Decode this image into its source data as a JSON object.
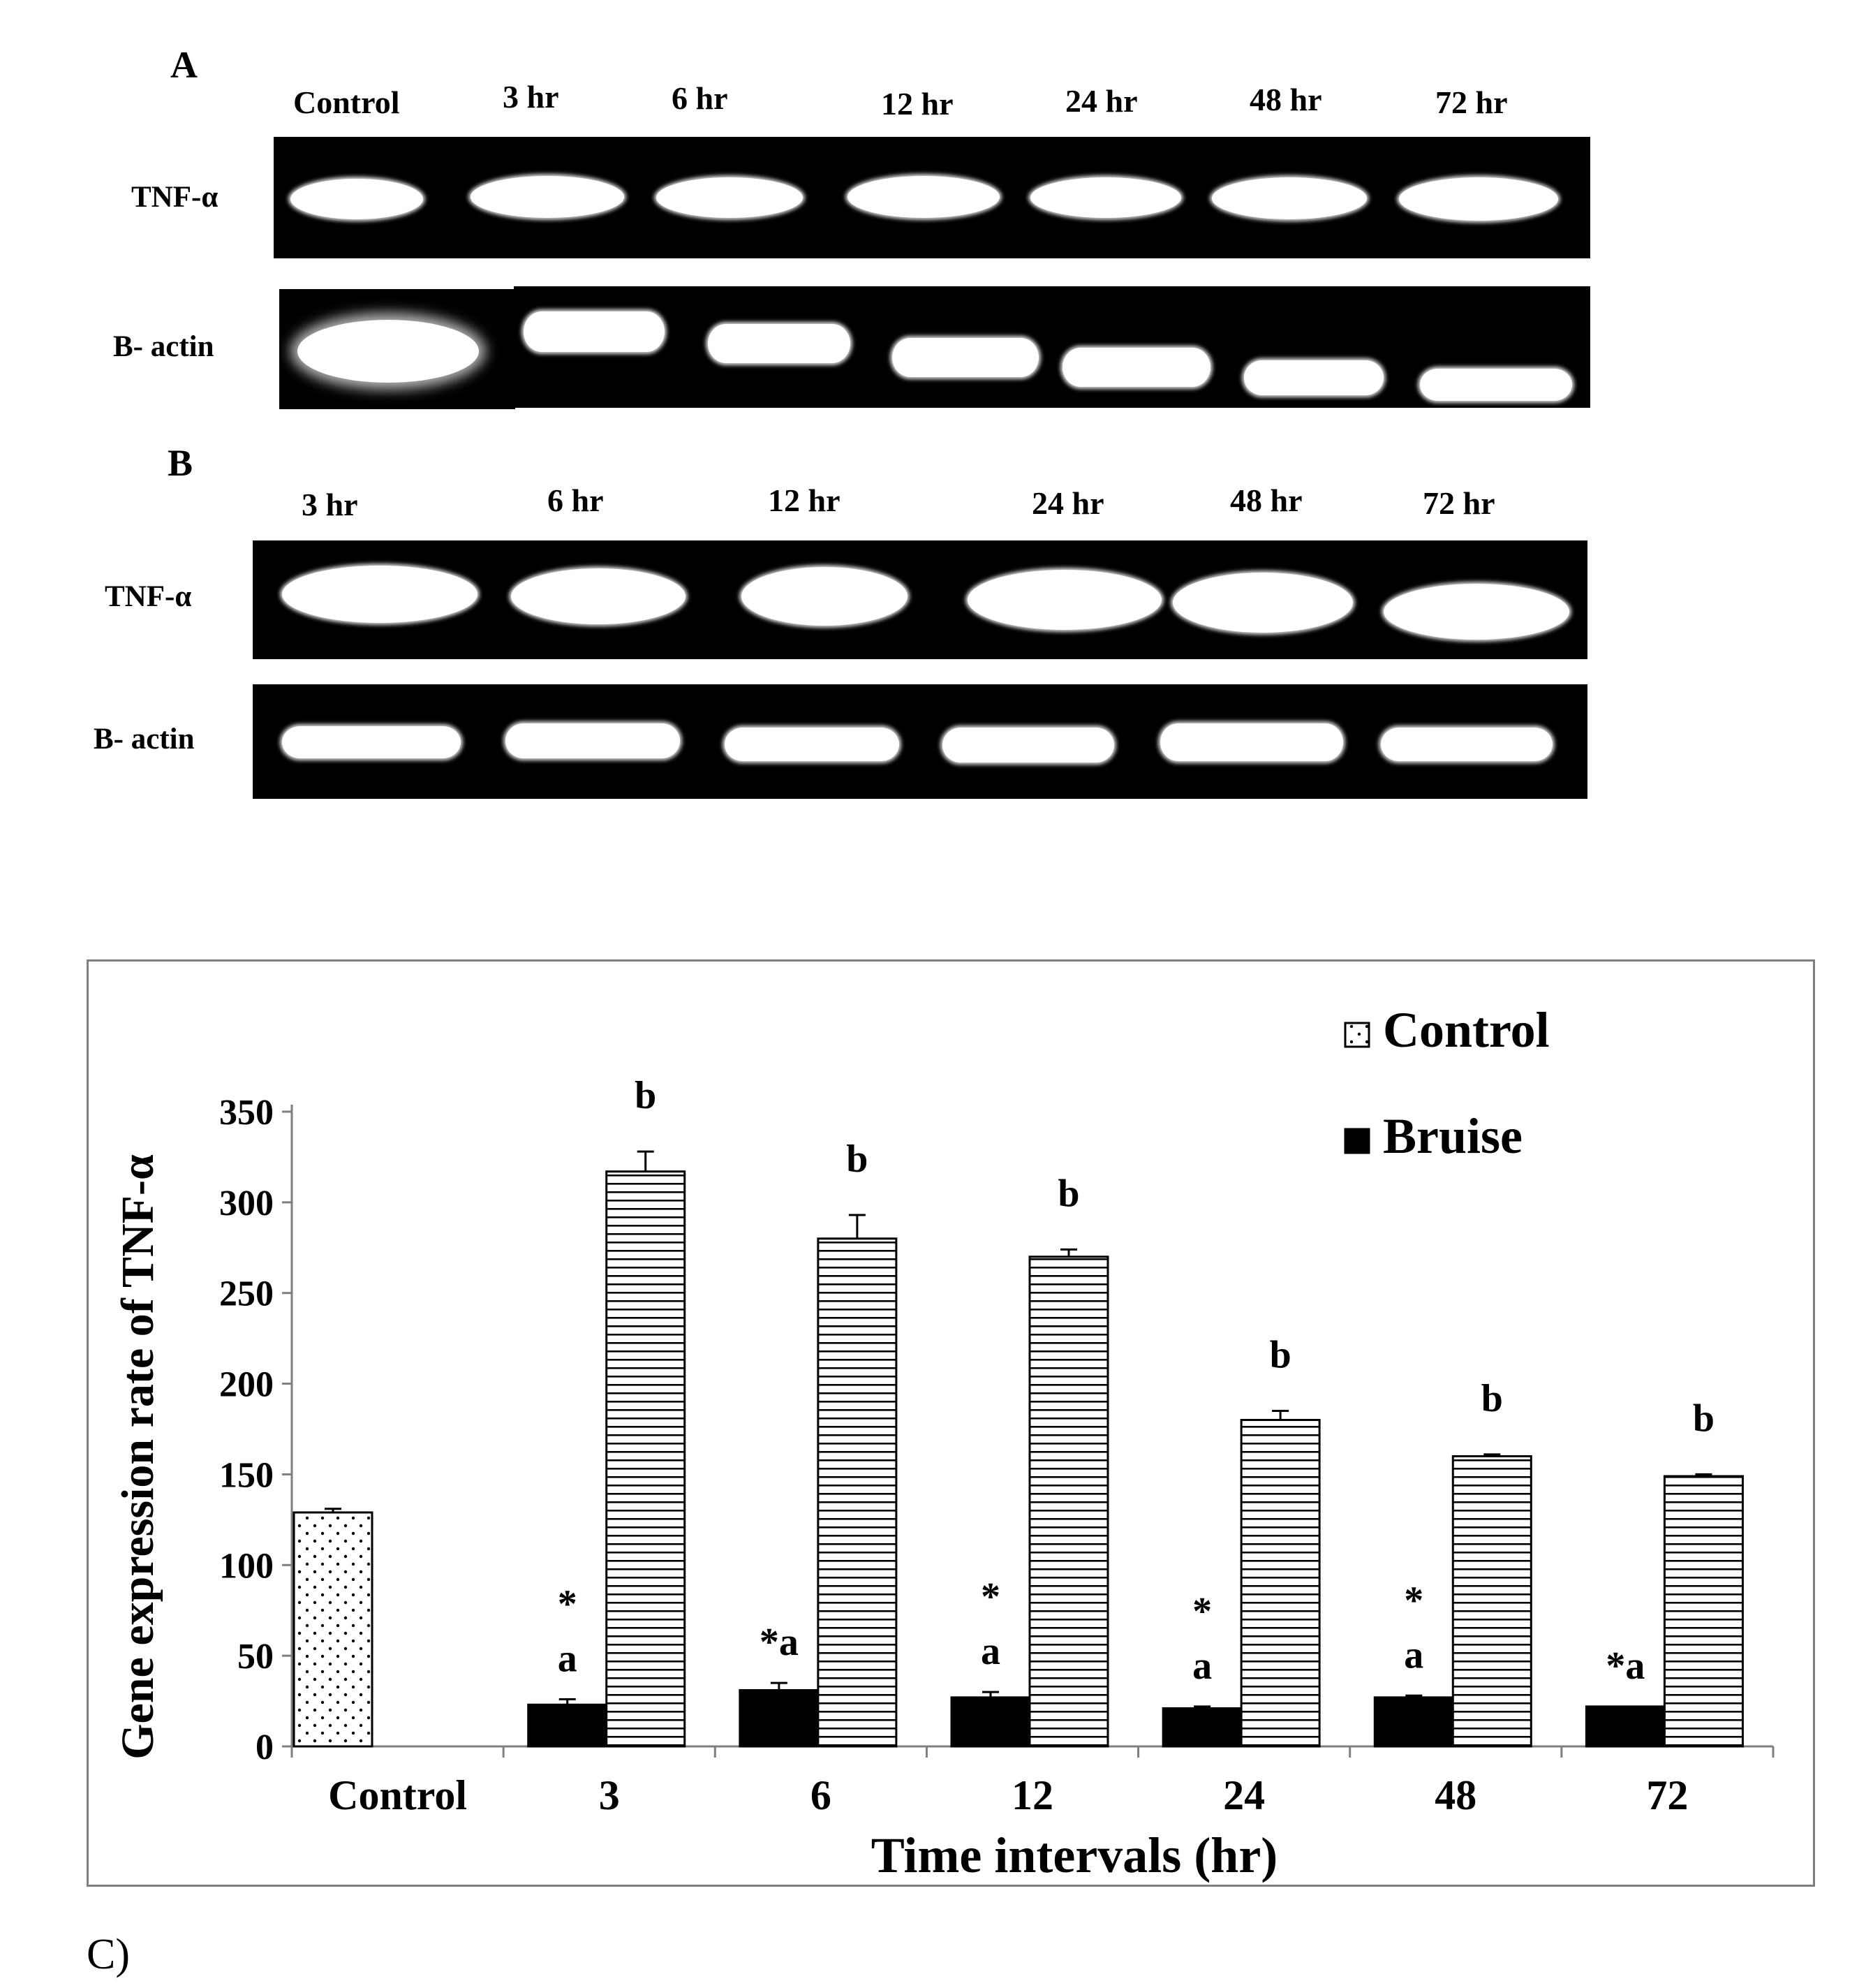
{
  "panel_a": {
    "letter": "A",
    "lanes": [
      "Control",
      "3 hr",
      "6 hr",
      "12 hr",
      "24 hr",
      "48 hr",
      "72 hr"
    ],
    "rows": [
      "TNF-α",
      "B- actin"
    ]
  },
  "panel_b": {
    "letter": "B",
    "lanes": [
      "3 hr",
      "6 hr",
      "12 hr",
      "24 hr",
      "48 hr",
      "72 hr"
    ],
    "rows": [
      "TNF-α",
      "B- actin"
    ]
  },
  "caption": "C)",
  "chart_data": {
    "type": "bar",
    "xlabel": "Time intervals (hr)",
    "ylabel": "Gene expression rate of TNF-α",
    "ylim": [
      0,
      350
    ],
    "yticks": [
      0,
      50,
      100,
      150,
      200,
      250,
      300,
      350
    ],
    "grid": false,
    "legend_position": "top-right",
    "categories": [
      "Control",
      "3",
      "6",
      "12",
      "24",
      "48",
      "72"
    ],
    "series": [
      {
        "name": "Control",
        "pattern": "dots",
        "values": [
          129,
          null,
          null,
          null,
          null,
          null,
          null
        ],
        "errors": [
          2,
          null,
          null,
          null,
          null,
          null,
          null
        ],
        "labels": [
          "",
          "",
          "",
          "",
          "",
          "",
          ""
        ]
      },
      {
        "name": "Bruise",
        "color": "#000000",
        "values": [
          null,
          23,
          31,
          27,
          21,
          27,
          22
        ],
        "errors": [
          null,
          3,
          4,
          3,
          1,
          1,
          0
        ],
        "labels": [
          "",
          "*\na",
          "*a",
          "*\na",
          "*\na",
          "*\na",
          "*a"
        ]
      },
      {
        "pattern": "horizontal-lines",
        "values": [
          null,
          317,
          280,
          270,
          180,
          160,
          149
        ],
        "errors": [
          null,
          11,
          13,
          4,
          5,
          1,
          1
        ],
        "labels": [
          "",
          "b",
          "b",
          "b",
          "b",
          "b",
          "b"
        ]
      }
    ]
  }
}
